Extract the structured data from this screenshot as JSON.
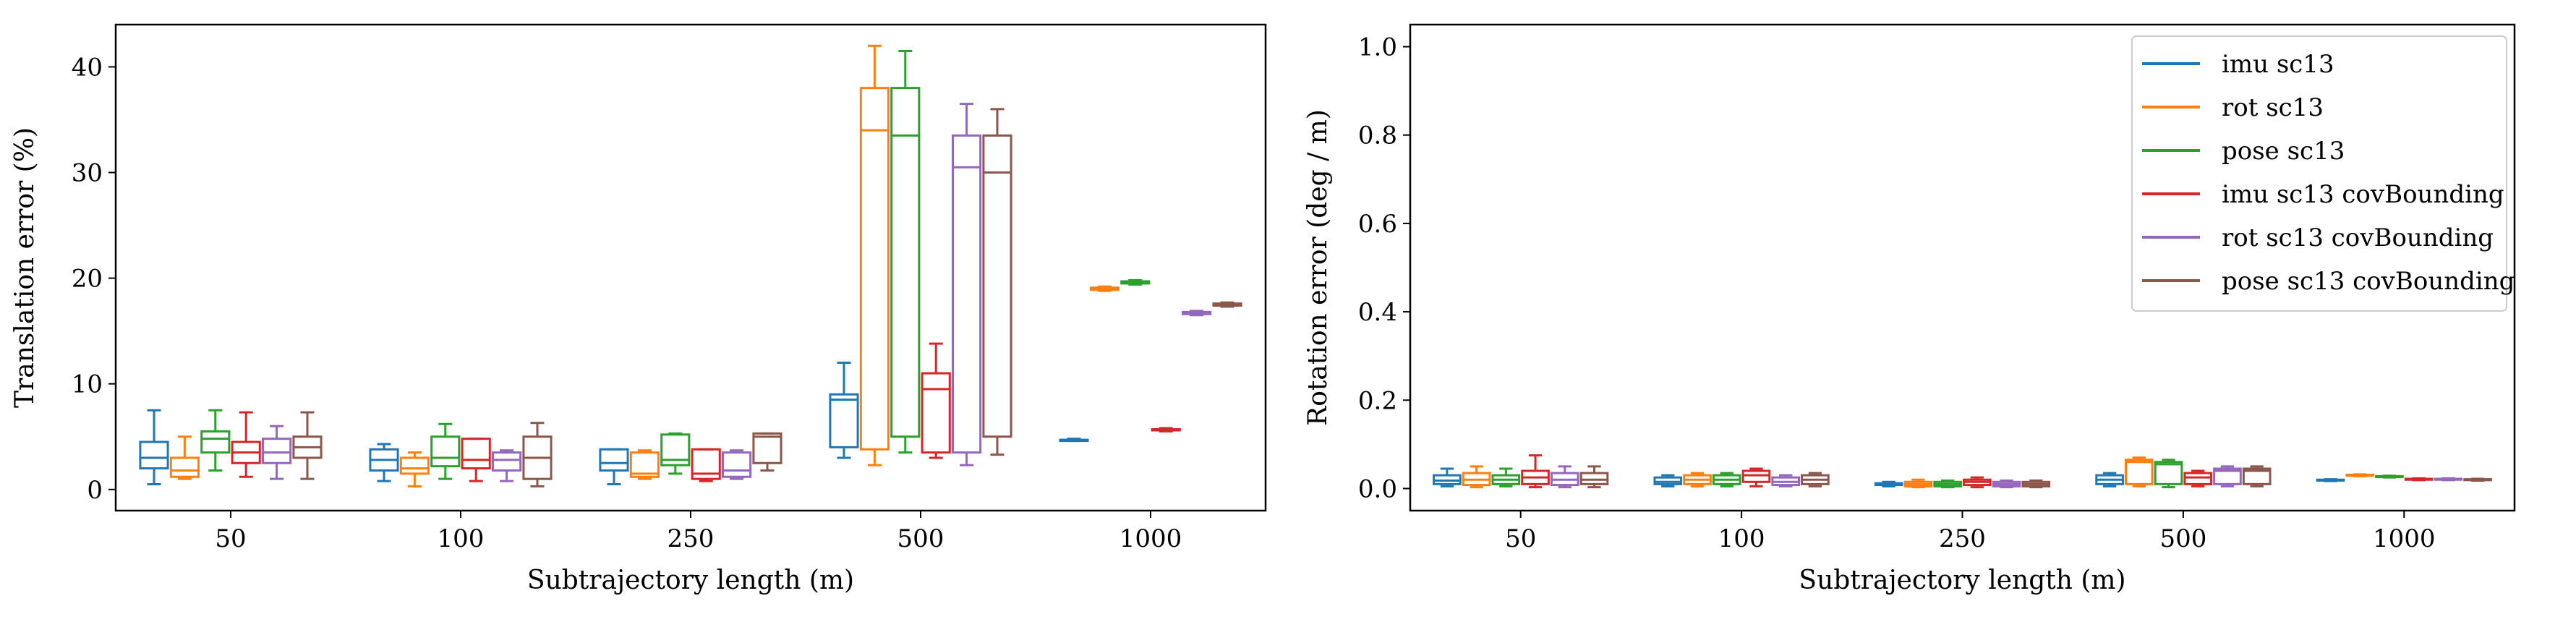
{
  "chart_data": [
    {
      "type": "box",
      "xlabel": "Subtrajectory length (m)",
      "ylabel": "Translation error (%)",
      "ylim": [
        -2,
        44
      ],
      "yticks": [
        0,
        10,
        20,
        30,
        40
      ],
      "categories": [
        "50",
        "100",
        "250",
        "500",
        "1000"
      ],
      "grid": false,
      "legend": null,
      "series": [
        {
          "name": "imu sc13",
          "color": "#1f77b4",
          "boxes": [
            {
              "whislo": 0.5,
              "q1": 2.0,
              "med": 3.0,
              "q3": 4.5,
              "whishi": 7.5
            },
            {
              "whislo": 0.8,
              "q1": 1.8,
              "med": 2.8,
              "q3": 3.8,
              "whishi": 4.3
            },
            {
              "whislo": 0.5,
              "q1": 1.8,
              "med": 2.5,
              "q3": 3.8,
              "whishi": 3.8
            },
            {
              "whislo": 3.0,
              "q1": 4.0,
              "med": 8.5,
              "q3": 9.0,
              "whishi": 12.0
            },
            {
              "whislo": 4.6,
              "q1": 4.6,
              "med": 4.7,
              "q3": 4.7,
              "whishi": 4.8
            }
          ]
        },
        {
          "name": "rot sc13",
          "color": "#ff7f0e",
          "boxes": [
            {
              "whislo": 1.0,
              "q1": 1.2,
              "med": 1.8,
              "q3": 3.0,
              "whishi": 5.0
            },
            {
              "whislo": 0.3,
              "q1": 1.5,
              "med": 2.0,
              "q3": 3.0,
              "whishi": 3.5
            },
            {
              "whislo": 1.0,
              "q1": 1.2,
              "med": 1.5,
              "q3": 3.5,
              "whishi": 3.7
            },
            {
              "whislo": 2.3,
              "q1": 3.8,
              "med": 34.0,
              "q3": 38.0,
              "whishi": 42.0
            },
            {
              "whislo": 18.8,
              "q1": 18.9,
              "med": 19.0,
              "q3": 19.1,
              "whishi": 19.2
            }
          ]
        },
        {
          "name": "pose sc13",
          "color": "#2ca02c",
          "boxes": [
            {
              "whislo": 1.8,
              "q1": 3.5,
              "med": 4.8,
              "q3": 5.5,
              "whishi": 7.5
            },
            {
              "whislo": 1.0,
              "q1": 2.2,
              "med": 3.0,
              "q3": 5.0,
              "whishi": 6.2
            },
            {
              "whislo": 1.5,
              "q1": 2.3,
              "med": 2.8,
              "q3": 5.2,
              "whishi": 5.3
            },
            {
              "whislo": 3.5,
              "q1": 5.0,
              "med": 33.5,
              "q3": 38.0,
              "whishi": 41.5
            },
            {
              "whislo": 19.4,
              "q1": 19.5,
              "med": 19.6,
              "q3": 19.7,
              "whishi": 19.8
            }
          ]
        },
        {
          "name": "imu sc13 covBounding",
          "color": "#d62728",
          "boxes": [
            {
              "whislo": 1.2,
              "q1": 2.5,
              "med": 3.5,
              "q3": 4.5,
              "whishi": 7.3
            },
            {
              "whislo": 0.8,
              "q1": 2.0,
              "med": 2.8,
              "q3": 4.8,
              "whishi": 4.8
            },
            {
              "whislo": 0.8,
              "q1": 1.0,
              "med": 1.5,
              "q3": 3.8,
              "whishi": 3.8
            },
            {
              "whislo": 3.0,
              "q1": 3.5,
              "med": 9.5,
              "q3": 11.0,
              "whishi": 13.8
            },
            {
              "whislo": 5.5,
              "q1": 5.6,
              "med": 5.6,
              "q3": 5.7,
              "whishi": 5.8
            }
          ]
        },
        {
          "name": "rot sc13 covBounding",
          "color": "#9467bd",
          "boxes": [
            {
              "whislo": 1.0,
              "q1": 2.5,
              "med": 3.5,
              "q3": 4.8,
              "whishi": 6.0
            },
            {
              "whislo": 0.8,
              "q1": 1.8,
              "med": 2.8,
              "q3": 3.5,
              "whishi": 3.7
            },
            {
              "whislo": 1.0,
              "q1": 1.2,
              "med": 1.8,
              "q3": 3.5,
              "whishi": 3.7
            },
            {
              "whislo": 2.3,
              "q1": 3.5,
              "med": 30.5,
              "q3": 33.5,
              "whishi": 36.5
            },
            {
              "whislo": 16.5,
              "q1": 16.6,
              "med": 16.7,
              "q3": 16.8,
              "whishi": 16.9
            }
          ]
        },
        {
          "name": "pose sc13 covBounding",
          "color": "#8c564b",
          "boxes": [
            {
              "whislo": 1.0,
              "q1": 3.0,
              "med": 4.0,
              "q3": 5.0,
              "whishi": 7.3
            },
            {
              "whislo": 0.3,
              "q1": 1.0,
              "med": 3.0,
              "q3": 5.0,
              "whishi": 6.3
            },
            {
              "whislo": 1.8,
              "q1": 2.5,
              "med": 5.0,
              "q3": 5.3,
              "whishi": 5.3
            },
            {
              "whislo": 3.3,
              "q1": 5.0,
              "med": 30.0,
              "q3": 33.5,
              "whishi": 36.0
            },
            {
              "whislo": 17.3,
              "q1": 17.4,
              "med": 17.5,
              "q3": 17.6,
              "whishi": 17.7
            }
          ]
        }
      ]
    },
    {
      "type": "box",
      "xlabel": "Subtrajectory length (m)",
      "ylabel": "Rotation error (deg / m)",
      "ylim": [
        -0.05,
        1.05
      ],
      "yticks": [
        0.0,
        0.2,
        0.4,
        0.6,
        0.8,
        1.0
      ],
      "ytick_labels": [
        "0.0",
        "0.2",
        "0.4",
        "0.6",
        "0.8",
        "1.0"
      ],
      "categories": [
        "50",
        "100",
        "250",
        "500",
        "1000"
      ],
      "grid": false,
      "legend": "top-right",
      "series": [
        {
          "name": "imu sc13",
          "color": "#1f77b4",
          "boxes": [
            {
              "whislo": 0.005,
              "q1": 0.01,
              "med": 0.018,
              "q3": 0.03,
              "whishi": 0.045
            },
            {
              "whislo": 0.005,
              "q1": 0.01,
              "med": 0.015,
              "q3": 0.025,
              "whishi": 0.03
            },
            {
              "whislo": 0.005,
              "q1": 0.008,
              "med": 0.01,
              "q3": 0.012,
              "whishi": 0.015
            },
            {
              "whislo": 0.005,
              "q1": 0.01,
              "med": 0.02,
              "q3": 0.03,
              "whishi": 0.035
            },
            {
              "whislo": 0.017,
              "q1": 0.018,
              "med": 0.019,
              "q3": 0.02,
              "whishi": 0.021
            }
          ]
        },
        {
          "name": "rot sc13",
          "color": "#ff7f0e",
          "boxes": [
            {
              "whislo": 0.003,
              "q1": 0.008,
              "med": 0.02,
              "q3": 0.035,
              "whishi": 0.05
            },
            {
              "whislo": 0.005,
              "q1": 0.01,
              "med": 0.02,
              "q3": 0.03,
              "whishi": 0.035
            },
            {
              "whislo": 0.003,
              "q1": 0.005,
              "med": 0.01,
              "q3": 0.015,
              "whishi": 0.02
            },
            {
              "whislo": 0.005,
              "q1": 0.01,
              "med": 0.06,
              "q3": 0.065,
              "whishi": 0.07
            },
            {
              "whislo": 0.028,
              "q1": 0.029,
              "med": 0.03,
              "q3": 0.031,
              "whishi": 0.032
            }
          ]
        },
        {
          "name": "pose sc13",
          "color": "#2ca02c",
          "boxes": [
            {
              "whislo": 0.005,
              "q1": 0.01,
              "med": 0.02,
              "q3": 0.03,
              "whishi": 0.045
            },
            {
              "whislo": 0.005,
              "q1": 0.01,
              "med": 0.02,
              "q3": 0.03,
              "whishi": 0.035
            },
            {
              "whislo": 0.003,
              "q1": 0.005,
              "med": 0.01,
              "q3": 0.015,
              "whishi": 0.018
            },
            {
              "whislo": 0.003,
              "q1": 0.01,
              "med": 0.055,
              "q3": 0.06,
              "whishi": 0.065
            },
            {
              "whislo": 0.025,
              "q1": 0.026,
              "med": 0.027,
              "q3": 0.028,
              "whishi": 0.029
            }
          ]
        },
        {
          "name": "imu sc13 covBounding",
          "color": "#d62728",
          "boxes": [
            {
              "whislo": 0.003,
              "q1": 0.01,
              "med": 0.025,
              "q3": 0.04,
              "whishi": 0.075
            },
            {
              "whislo": 0.005,
              "q1": 0.015,
              "med": 0.03,
              "q3": 0.04,
              "whishi": 0.045
            },
            {
              "whislo": 0.003,
              "q1": 0.008,
              "med": 0.015,
              "q3": 0.02,
              "whishi": 0.025
            },
            {
              "whislo": 0.005,
              "q1": 0.01,
              "med": 0.025,
              "q3": 0.035,
              "whishi": 0.04
            },
            {
              "whislo": 0.019,
              "q1": 0.02,
              "med": 0.021,
              "q3": 0.022,
              "whishi": 0.023
            }
          ]
        },
        {
          "name": "rot sc13 covBounding",
          "color": "#9467bd",
          "boxes": [
            {
              "whislo": 0.003,
              "q1": 0.008,
              "med": 0.02,
              "q3": 0.035,
              "whishi": 0.05
            },
            {
              "whislo": 0.005,
              "q1": 0.008,
              "med": 0.015,
              "q3": 0.025,
              "whishi": 0.03
            },
            {
              "whislo": 0.003,
              "q1": 0.005,
              "med": 0.01,
              "q3": 0.015,
              "whishi": 0.018
            },
            {
              "whislo": 0.005,
              "q1": 0.01,
              "med": 0.04,
              "q3": 0.045,
              "whishi": 0.05
            },
            {
              "whislo": 0.019,
              "q1": 0.02,
              "med": 0.021,
              "q3": 0.022,
              "whishi": 0.023
            }
          ]
        },
        {
          "name": "pose sc13 covBounding",
          "color": "#8c564b",
          "boxes": [
            {
              "whislo": 0.003,
              "q1": 0.01,
              "med": 0.02,
              "q3": 0.035,
              "whishi": 0.05
            },
            {
              "whislo": 0.005,
              "q1": 0.01,
              "med": 0.02,
              "q3": 0.03,
              "whishi": 0.035
            },
            {
              "whislo": 0.003,
              "q1": 0.005,
              "med": 0.01,
              "q3": 0.015,
              "whishi": 0.018
            },
            {
              "whislo": 0.005,
              "q1": 0.01,
              "med": 0.04,
              "q3": 0.045,
              "whishi": 0.05
            },
            {
              "whislo": 0.018,
              "q1": 0.019,
              "med": 0.02,
              "q3": 0.021,
              "whishi": 0.022
            }
          ]
        }
      ]
    }
  ]
}
